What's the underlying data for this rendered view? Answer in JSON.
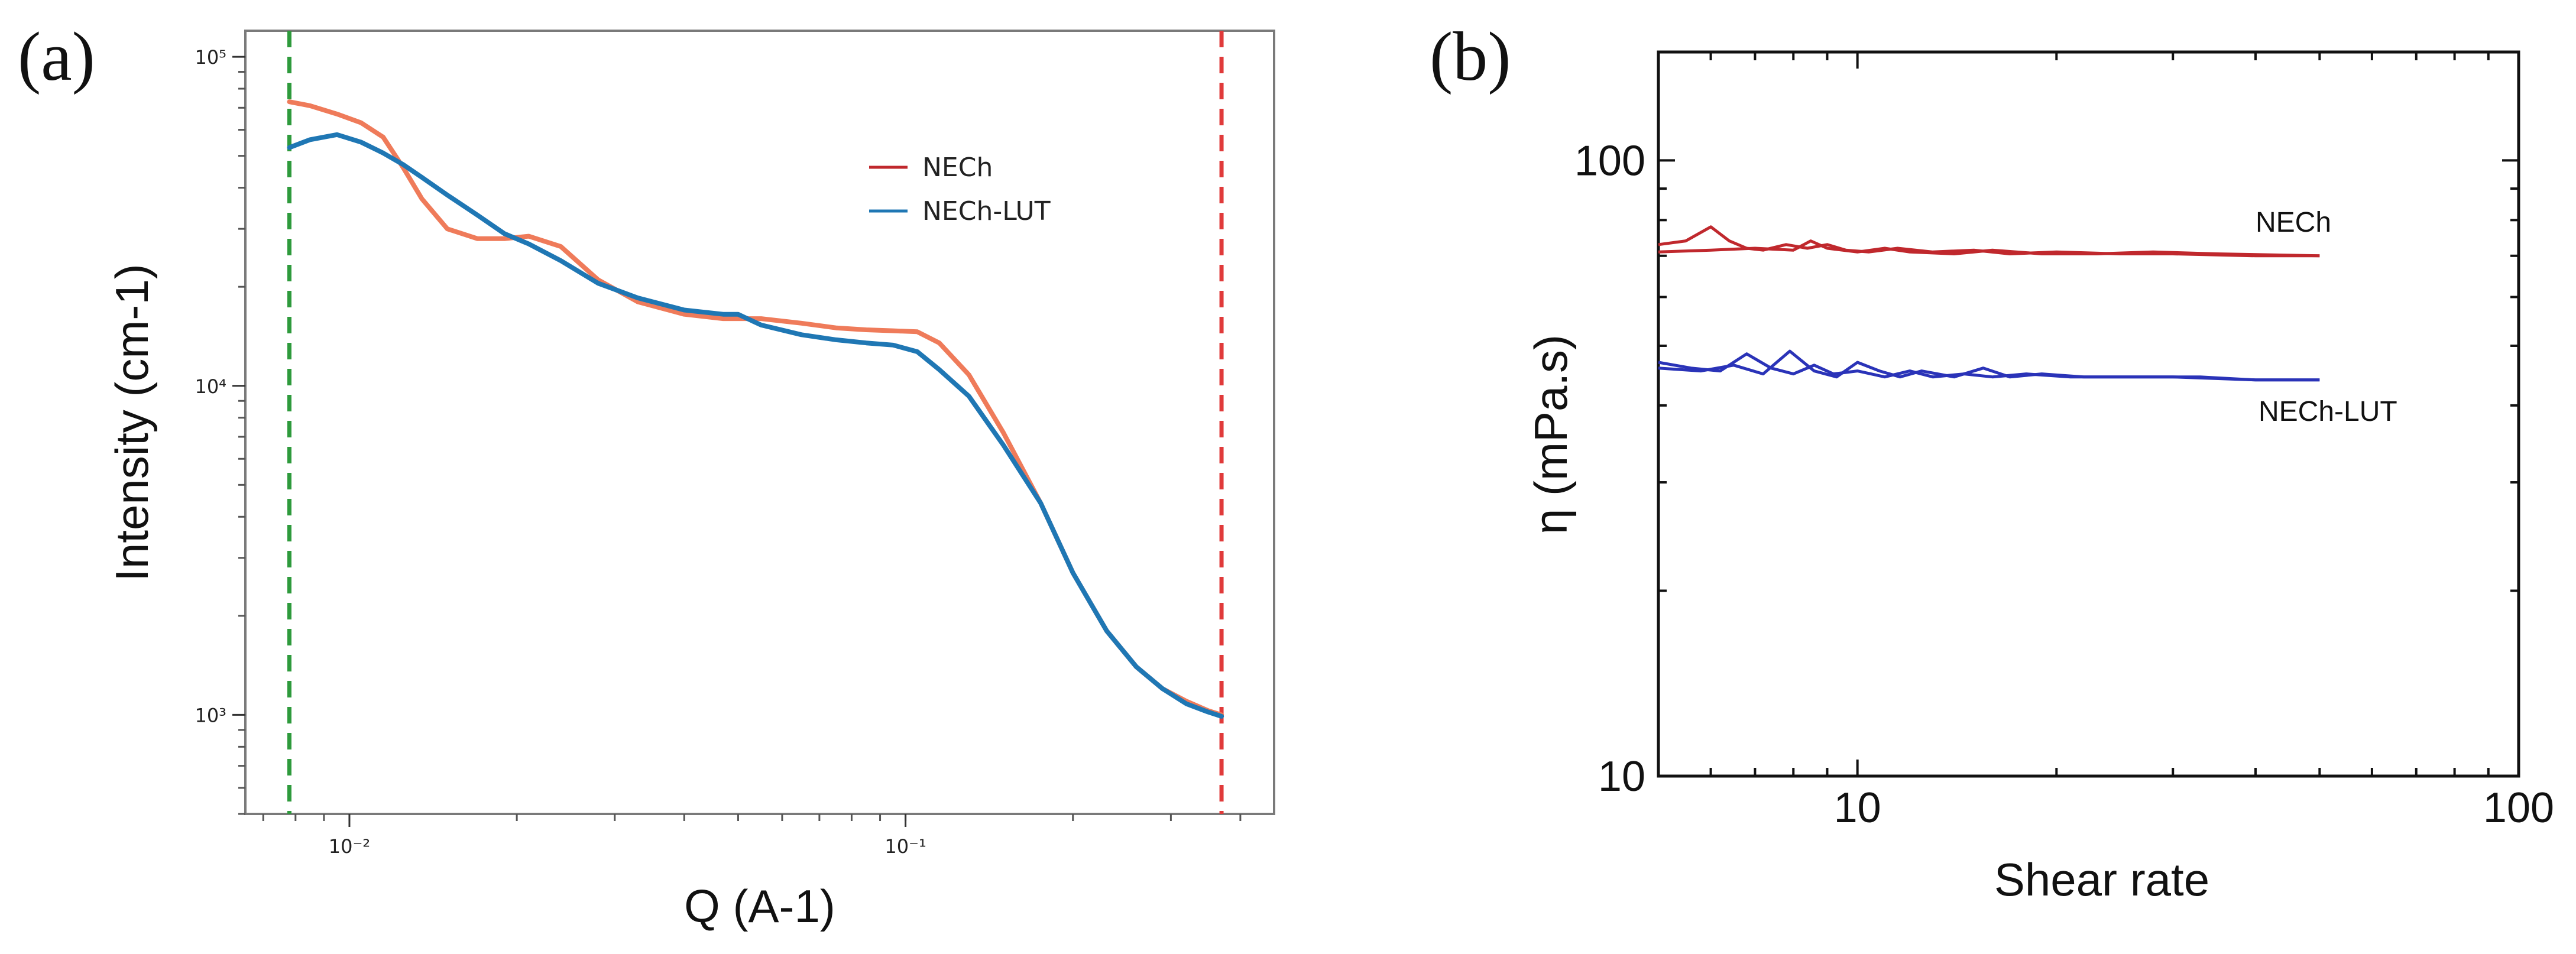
{
  "panels": [
    {
      "label": "(a)",
      "chart_data": {
        "type": "line",
        "xlabel": "Q (A-1)",
        "ylabel": "Intensity (cm-1)",
        "xscale": "log",
        "yscale": "log",
        "xlim": [
          0.0065,
          0.46
        ],
        "ylim": [
          500,
          120000
        ],
        "x_ticks": [
          0.01,
          0.1
        ],
        "x_tick_labels": [
          "10⁻²",
          "10⁻¹"
        ],
        "y_ticks": [
          1000,
          10000,
          100000
        ],
        "y_tick_labels": [
          "10³",
          "10⁴",
          "10⁵"
        ],
        "legend": {
          "placement": "top-right",
          "entries": [
            "NECh",
            "NECh-LUT"
          ]
        },
        "vlines": [
          {
            "x": 0.0078,
            "color": "#2e9a3c",
            "style": "dashed"
          },
          {
            "x": 0.37,
            "color": "#e03a3a",
            "style": "dashed"
          }
        ],
        "series": [
          {
            "name": "NECh",
            "color": "#ef7b5a",
            "x": [
              0.0078,
              0.0085,
              0.0095,
              0.0105,
              0.0115,
              0.0125,
              0.0135,
              0.015,
              0.017,
              0.019,
              0.021,
              0.024,
              0.028,
              0.033,
              0.04,
              0.047,
              0.055,
              0.065,
              0.075,
              0.085,
              0.095,
              0.105,
              0.115,
              0.13,
              0.15,
              0.175,
              0.2,
              0.23,
              0.26,
              0.29,
              0.32,
              0.35,
              0.37
            ],
            "y": [
              73000,
              71000,
              67000,
              63000,
              57000,
              46000,
              37000,
              30000,
              28000,
              28000,
              28500,
              26500,
              21000,
              18000,
              16500,
              16000,
              16000,
              15500,
              15000,
              14800,
              14700,
              14600,
              13500,
              10800,
              7200,
              4400,
              2700,
              1800,
              1400,
              1200,
              1100,
              1030,
              1000
            ]
          },
          {
            "name": "NECh-LUT",
            "color": "#1f77b4",
            "x": [
              0.0078,
              0.0085,
              0.0095,
              0.0105,
              0.0115,
              0.0125,
              0.0135,
              0.015,
              0.017,
              0.019,
              0.021,
              0.024,
              0.028,
              0.033,
              0.04,
              0.047,
              0.05,
              0.055,
              0.065,
              0.075,
              0.085,
              0.095,
              0.105,
              0.115,
              0.13,
              0.15,
              0.175,
              0.2,
              0.23,
              0.26,
              0.29,
              0.32,
              0.35,
              0.37
            ],
            "y": [
              53000,
              56000,
              58000,
              55000,
              51000,
              47000,
              43000,
              38000,
              33000,
              29000,
              27000,
              24000,
              20500,
              18500,
              17000,
              16500,
              16500,
              15300,
              14300,
              13800,
              13500,
              13300,
              12700,
              11200,
              9300,
              6600,
              4400,
              2700,
              1800,
              1400,
              1200,
              1080,
              1020,
              990
            ]
          }
        ]
      }
    },
    {
      "label": "(b)",
      "chart_data": {
        "type": "line",
        "xlabel": "Shear rate",
        "ylabel": "η (mPa.s)",
        "xscale": "log",
        "yscale": "log",
        "xlim": [
          5,
          100
        ],
        "ylim": [
          10,
          150
        ],
        "x_ticks": [
          10,
          100
        ],
        "x_tick_labels": [
          "10",
          "100"
        ],
        "y_ticks": [
          10,
          100
        ],
        "y_tick_labels": [
          "10",
          "100"
        ],
        "series": [
          {
            "name": "NECh",
            "color": "#c0282d",
            "x": [
              5,
              5.5,
              6,
              6.4,
              6.8,
              7.2,
              7.8,
              8.4,
              9,
              9.6,
              10.4,
              11.5,
              13,
              15,
              17,
              20,
              25,
              30,
              40,
              50
            ],
            "y": [
              73,
              74,
              78,
              74,
              72,
              71.5,
              73,
              72,
              73,
              71.5,
              71,
              72,
              71,
              71.5,
              70.5,
              71,
              70.5,
              70.5,
              70,
              70
            ]
          },
          {
            "name": "NECh",
            "color": "#c0282d",
            "x": [
              5,
              6,
              7,
              8,
              8.5,
              9,
              10,
              11,
              12,
              14,
              16,
              19,
              23,
              28,
              35,
              50
            ],
            "y": [
              71,
              71.5,
              72,
              71.5,
              74,
              72,
              71,
              72,
              71,
              70.5,
              71.5,
              70.5,
              70.5,
              71,
              70.5,
              70
            ]
          },
          {
            "name": "NECh-LUT",
            "color": "#2a33b8",
            "x": [
              5,
              5.6,
              6.2,
              6.8,
              7.4,
              8,
              8.6,
              9.2,
              10,
              11,
              12,
              13,
              14.5,
              16,
              18,
              21,
              25,
              30,
              40,
              50
            ],
            "y": [
              47,
              46,
              45.5,
              48.5,
              46,
              45,
              46.5,
              45,
              45.5,
              44.5,
              45.5,
              44.5,
              45,
              44.5,
              45,
              44.5,
              44.5,
              44.5,
              44,
              44
            ]
          },
          {
            "name": "NECh-LUT",
            "color": "#2a33b8",
            "x": [
              5,
              5.8,
              6.5,
              7.2,
              7.9,
              8.6,
              9.3,
              10,
              10.8,
              11.6,
              12.5,
              14,
              15.5,
              17,
              19,
              22,
              27,
              33,
              40,
              50
            ],
            "y": [
              46,
              45.5,
              46.5,
              45,
              49,
              45.5,
              44.5,
              47,
              45.5,
              44.5,
              45.5,
              44.5,
              46,
              44.5,
              45,
              44.5,
              44.5,
              44.5,
              44,
              44
            ]
          }
        ],
        "annotations": [
          "NECh",
          "NECh-LUT"
        ]
      }
    }
  ]
}
